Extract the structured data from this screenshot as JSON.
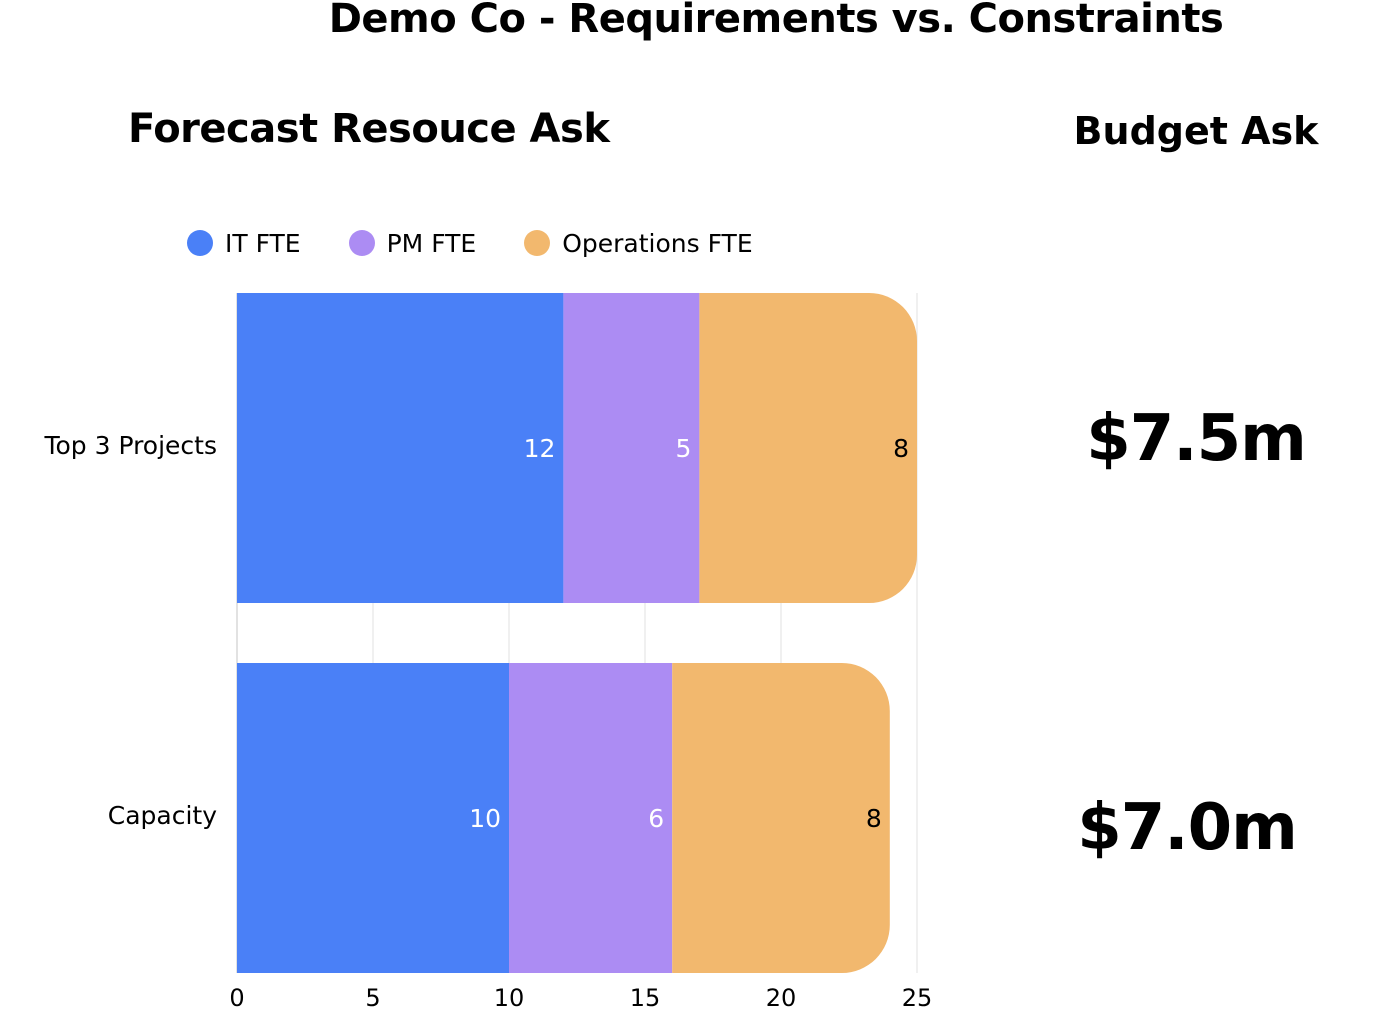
{
  "title": "Demo Co - Requirements vs. Constraints",
  "forecast_title": "Forecast Resouce Ask",
  "budget_title": "Budget Ask",
  "budget_values": [
    "$7.5m",
    "$7.0m"
  ],
  "colors": {
    "it": "#4a80f7",
    "pm": "#ac8cf3",
    "ops": "#f2b86e"
  },
  "legend": [
    {
      "label": "IT FTE",
      "color": "#4a80f7"
    },
    {
      "label": "PM FTE",
      "color": "#ac8cf3"
    },
    {
      "label": "Operations FTE",
      "color": "#f2b86e"
    }
  ],
  "chart_data": {
    "type": "bar",
    "orientation": "horizontal",
    "stacked": true,
    "categories": [
      "Top 3 Projects",
      "Capacity"
    ],
    "series": [
      {
        "name": "IT FTE",
        "values": [
          12,
          10
        ],
        "color": "#4a80f7",
        "label_color": "#ffffff"
      },
      {
        "name": "PM FTE",
        "values": [
          5,
          6
        ],
        "color": "#ac8cf3",
        "label_color": "#ffffff"
      },
      {
        "name": "Operations FTE",
        "values": [
          8,
          8
        ],
        "color": "#f2b86e",
        "label_color": "#000000"
      }
    ],
    "xlim": [
      0,
      25
    ],
    "xticks": [
      0,
      5,
      10,
      15,
      20,
      25
    ],
    "grid": true,
    "legend_position": "top-left"
  }
}
